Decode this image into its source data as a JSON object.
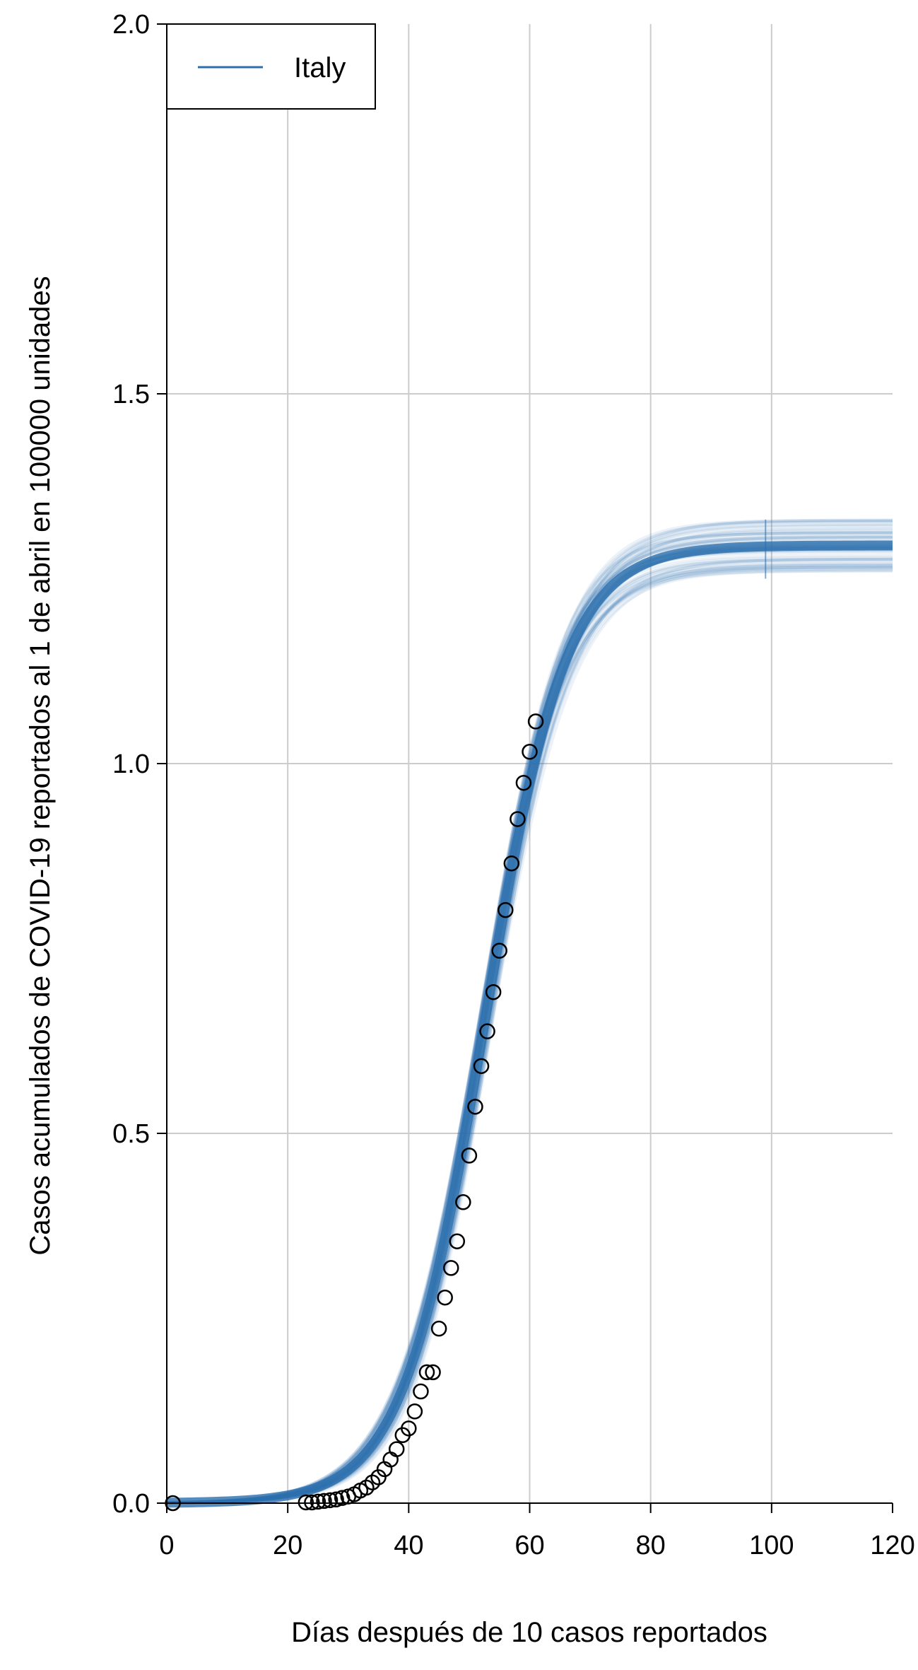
{
  "chart_data": {
    "type": "line",
    "xlabel": "Días después de 10 casos reportados",
    "ylabel": "Casos acumulados de COVID-19 reportados al 1 de abril en 100000 unidades",
    "xlim": [
      0,
      120
    ],
    "ylim": [
      0,
      2.0
    ],
    "xticks": [
      "0",
      "20",
      "40",
      "60",
      "80",
      "100",
      "120"
    ],
    "yticks": [
      "0.0",
      "0.5",
      "1.0",
      "1.5",
      "2.0"
    ],
    "grid": true,
    "legend": {
      "placement": "top-left",
      "entries": [
        "Italy"
      ]
    },
    "series": [
      {
        "name": "Italy",
        "color": "#2c6fad",
        "kind": "fitted-curve-ensemble",
        "asymptote": 1.295,
        "midpoint": 52.5,
        "growth_rate": 0.148
      }
    ],
    "observed": {
      "marker": "open-circle",
      "points": [
        [
          1,
          0.0
        ],
        [
          23,
          0.001
        ],
        [
          24,
          0.001
        ],
        [
          25,
          0.002
        ],
        [
          26,
          0.003
        ],
        [
          27,
          0.004
        ],
        [
          28,
          0.005
        ],
        [
          29,
          0.007
        ],
        [
          30,
          0.009
        ],
        [
          31,
          0.012
        ],
        [
          32,
          0.017
        ],
        [
          33,
          0.021
        ],
        [
          34,
          0.028
        ],
        [
          35,
          0.035
        ],
        [
          36,
          0.046
        ],
        [
          37,
          0.059
        ],
        [
          38,
          0.073
        ],
        [
          39,
          0.092
        ],
        [
          40,
          0.101
        ],
        [
          41,
          0.124
        ],
        [
          42,
          0.151
        ],
        [
          43,
          0.177
        ],
        [
          44,
          0.177
        ],
        [
          45,
          0.236
        ],
        [
          46,
          0.278
        ],
        [
          47,
          0.318
        ],
        [
          48,
          0.354
        ],
        [
          49,
          0.407
        ],
        [
          50,
          0.47
        ],
        [
          51,
          0.536
        ],
        [
          52,
          0.591
        ],
        [
          53,
          0.638
        ],
        [
          54,
          0.691
        ],
        [
          55,
          0.747
        ],
        [
          56,
          0.802
        ],
        [
          57,
          0.865
        ],
        [
          58,
          0.925
        ],
        [
          59,
          0.974
        ],
        [
          60,
          1.016
        ],
        [
          61,
          1.057
        ]
      ]
    }
  }
}
